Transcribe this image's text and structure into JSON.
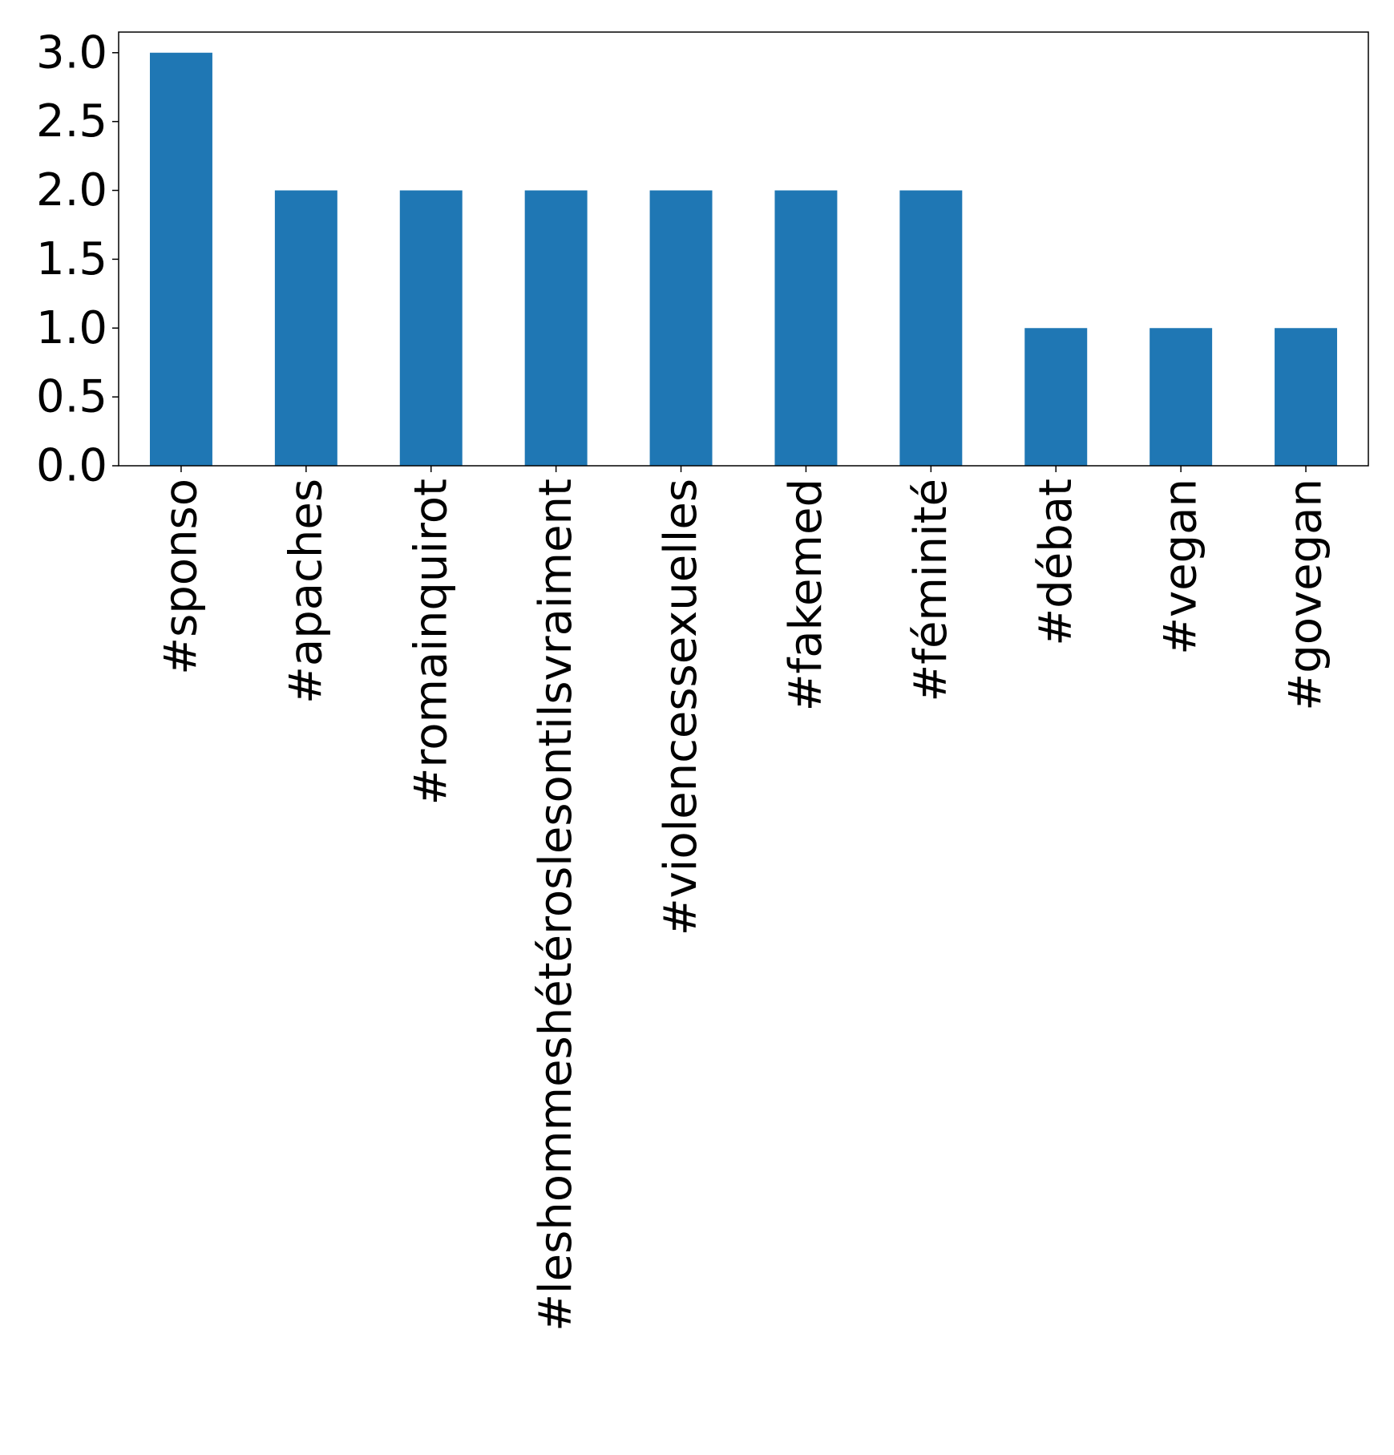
{
  "chart_data": {
    "type": "bar",
    "title": "",
    "xlabel": "",
    "ylabel": "",
    "categories": [
      "#sponso",
      "#apaches",
      "#romainquirot",
      "#leshommeshétéroslesontilsvraiment",
      "#violencessexuelles",
      "#fakemed",
      "#féminité",
      "#débat",
      "#vegan",
      "#govegan"
    ],
    "values": [
      3,
      2,
      2,
      2,
      2,
      2,
      2,
      1,
      1,
      1
    ],
    "ylim": [
      0,
      3.15
    ],
    "yticks": [
      0.0,
      0.5,
      1.0,
      1.5,
      2.0,
      2.5,
      3.0
    ],
    "ytick_labels": [
      "0.0",
      "0.5",
      "1.0",
      "1.5",
      "2.0",
      "2.5",
      "3.0"
    ],
    "bar_color": "#1f77b4",
    "grid": false,
    "legend": "none",
    "x_label_rotation": "vertical"
  }
}
